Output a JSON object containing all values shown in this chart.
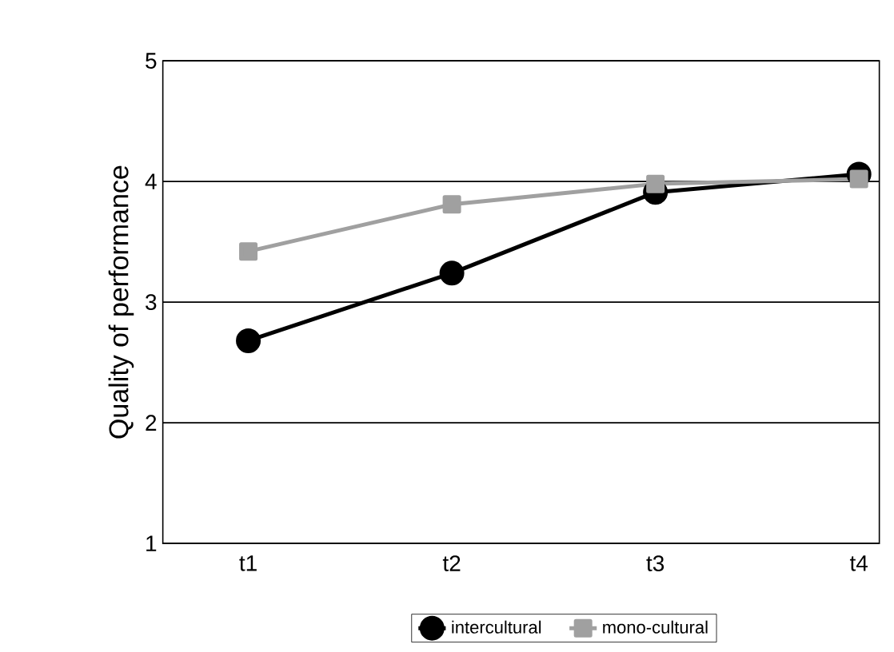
{
  "chart_data": {
    "type": "line",
    "ylabel": "Quality of performance",
    "categories": [
      "t1",
      "t2",
      "t3",
      "t4"
    ],
    "series": [
      {
        "name": "intercultural",
        "color": "#000000",
        "marker": "circle",
        "values": [
          2.68,
          3.24,
          3.91,
          4.06
        ]
      },
      {
        "name": "mono-cultural",
        "color": "#a0a0a0",
        "marker": "square",
        "values": [
          3.42,
          3.81,
          3.98,
          4.02
        ]
      }
    ],
    "ylim": [
      1,
      5
    ],
    "yticks": [
      1,
      2,
      3,
      4,
      5
    ],
    "grid": "y",
    "legend": "bottom",
    "line_style": "solid"
  }
}
